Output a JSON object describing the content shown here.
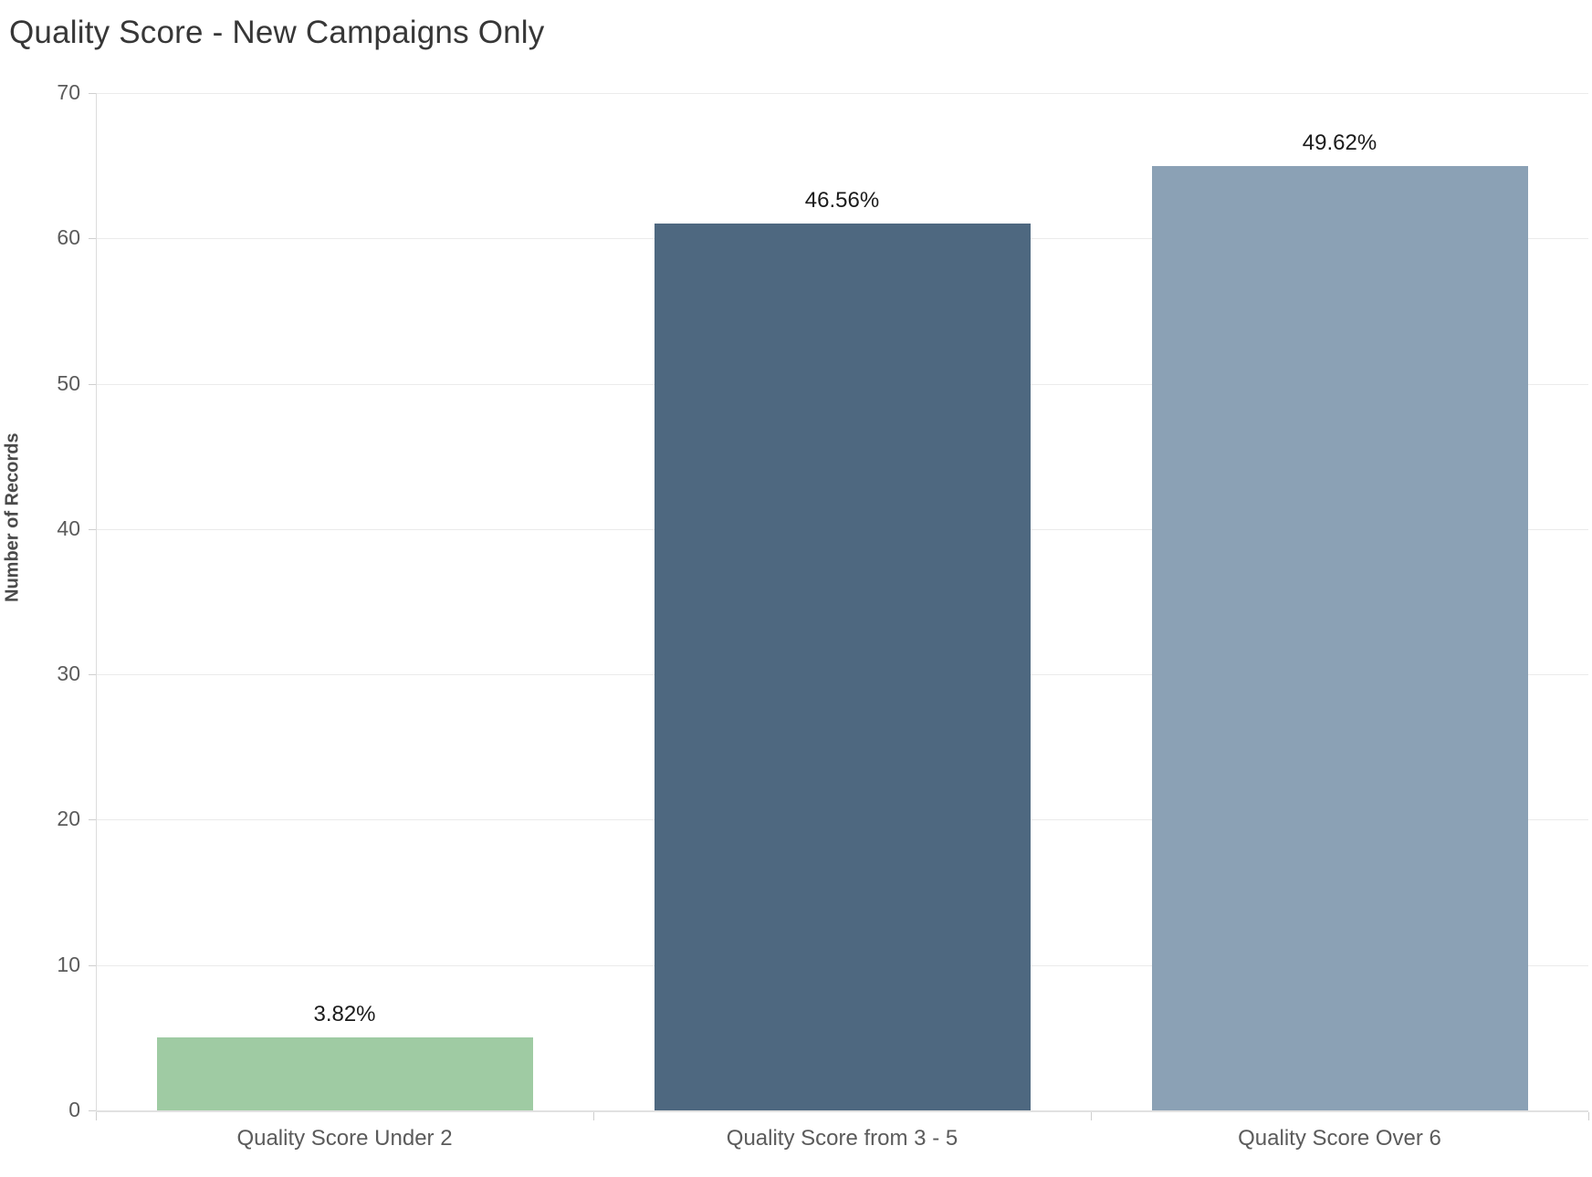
{
  "title": "Quality Score - New Campaigns Only",
  "chart_data": {
    "type": "bar",
    "title": "Quality Score - New Campaigns Only",
    "xlabel": "",
    "ylabel": "Number of Records",
    "categories": [
      "Quality Score Under 2",
      "Quality Score from 3 - 5",
      "Quality Score Over 6"
    ],
    "values": [
      5,
      61,
      65
    ],
    "value_labels": [
      "3.82%",
      "46.56%",
      "49.62%"
    ],
    "bar_colors": [
      "#9FCBA3",
      "#4E6880",
      "#8BA1B5"
    ],
    "ylim": [
      0,
      70
    ],
    "yticks": [
      0,
      10,
      20,
      30,
      40,
      50,
      60,
      70
    ],
    "grid": true,
    "legend": false,
    "background": "#ffffff"
  },
  "colors": {
    "title_text": "#373737",
    "axis_text": "#5b5b5b",
    "gridline": "#ebebeb",
    "axis_line": "#dcdcdc",
    "tick_mark": "#cfcfcf",
    "value_label_text": "#1b1b1b"
  }
}
